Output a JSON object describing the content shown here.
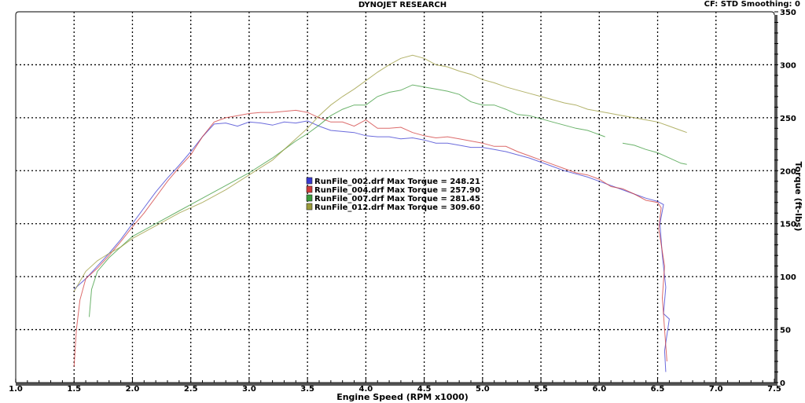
{
  "header": {
    "title": "DYNOJET RESEARCH",
    "settings": "CF: STD  Smoothing: 0"
  },
  "chart_data": {
    "type": "line",
    "title": "DYNOJET RESEARCH",
    "subtitle": "CF: STD  Smoothing: 0",
    "xlabel": "Engine Speed (RPM x1000)",
    "ylabel": "Torque (ft-lbs)",
    "xlim": [
      1.0,
      7.5
    ],
    "ylim": [
      0,
      350
    ],
    "x_ticks": [
      "1.0",
      "1.5",
      "2.0",
      "2.5",
      "3.0",
      "3.5",
      "4.0",
      "4.5",
      "5.0",
      "5.5",
      "6.0",
      "6.5",
      "7.0",
      "7.5"
    ],
    "y_ticks": [
      "0",
      "50",
      "100",
      "150",
      "200",
      "250",
      "300",
      "350"
    ],
    "grid": true,
    "legend_position": "center",
    "series": [
      {
        "name": "RunFile_002.drf",
        "legend": "RunFile_002.drf Max Torque = 248.21",
        "max_torque": 248.21,
        "color": "#3a3ad0",
        "points": [
          [
            1.5,
            88
          ],
          [
            1.6,
            98
          ],
          [
            1.7,
            110
          ],
          [
            1.8,
            122
          ],
          [
            1.9,
            135
          ],
          [
            2.0,
            150
          ],
          [
            2.1,
            165
          ],
          [
            2.2,
            180
          ],
          [
            2.3,
            193
          ],
          [
            2.4,
            205
          ],
          [
            2.5,
            218
          ],
          [
            2.6,
            232
          ],
          [
            2.7,
            244
          ],
          [
            2.8,
            245
          ],
          [
            2.9,
            242
          ],
          [
            3.0,
            246
          ],
          [
            3.1,
            245
          ],
          [
            3.2,
            243
          ],
          [
            3.3,
            246
          ],
          [
            3.4,
            245
          ],
          [
            3.5,
            247
          ],
          [
            3.6,
            242
          ],
          [
            3.7,
            238
          ],
          [
            3.8,
            237
          ],
          [
            3.9,
            236
          ],
          [
            4.0,
            233
          ],
          [
            4.1,
            232
          ],
          [
            4.2,
            232
          ],
          [
            4.3,
            230
          ],
          [
            4.4,
            231
          ],
          [
            4.5,
            229
          ],
          [
            4.6,
            226
          ],
          [
            4.7,
            226
          ],
          [
            4.8,
            224
          ],
          [
            4.9,
            222
          ],
          [
            5.0,
            222
          ],
          [
            5.1,
            220
          ],
          [
            5.2,
            218
          ],
          [
            5.3,
            215
          ],
          [
            5.4,
            212
          ],
          [
            5.5,
            208
          ],
          [
            5.6,
            204
          ],
          [
            5.7,
            200
          ],
          [
            5.8,
            197
          ],
          [
            5.9,
            194
          ],
          [
            6.0,
            190
          ],
          [
            6.1,
            186
          ],
          [
            6.2,
            182
          ],
          [
            6.3,
            178
          ],
          [
            6.4,
            174
          ],
          [
            6.5,
            171
          ],
          [
            6.55,
            168
          ],
          [
            6.52,
            150
          ],
          [
            6.54,
            120
          ],
          [
            6.57,
            90
          ],
          [
            6.55,
            65
          ],
          [
            6.6,
            60
          ],
          [
            6.56,
            30
          ],
          [
            6.57,
            10
          ]
        ]
      },
      {
        "name": "RunFile_004.drf",
        "legend": "RunFile_004.drf Max Torque = 257.90",
        "max_torque": 257.9,
        "color": "#d03a3a",
        "points": [
          [
            1.5,
            15
          ],
          [
            1.52,
            50
          ],
          [
            1.55,
            78
          ],
          [
            1.6,
            98
          ],
          [
            1.7,
            108
          ],
          [
            1.8,
            120
          ],
          [
            1.9,
            133
          ],
          [
            2.0,
            147
          ],
          [
            2.1,
            160
          ],
          [
            2.2,
            175
          ],
          [
            2.3,
            190
          ],
          [
            2.4,
            203
          ],
          [
            2.5,
            215
          ],
          [
            2.6,
            232
          ],
          [
            2.7,
            246
          ],
          [
            2.8,
            250
          ],
          [
            2.9,
            252
          ],
          [
            3.0,
            254
          ],
          [
            3.1,
            255
          ],
          [
            3.2,
            255
          ],
          [
            3.3,
            256
          ],
          [
            3.4,
            257
          ],
          [
            3.5,
            255
          ],
          [
            3.6,
            250
          ],
          [
            3.7,
            246
          ],
          [
            3.8,
            246
          ],
          [
            3.9,
            242
          ],
          [
            4.0,
            248
          ],
          [
            4.1,
            240
          ],
          [
            4.2,
            240
          ],
          [
            4.3,
            241
          ],
          [
            4.4,
            236
          ],
          [
            4.5,
            233
          ],
          [
            4.6,
            231
          ],
          [
            4.7,
            232
          ],
          [
            4.8,
            230
          ],
          [
            4.9,
            228
          ],
          [
            5.0,
            226
          ],
          [
            5.1,
            223
          ],
          [
            5.2,
            223
          ],
          [
            5.3,
            218
          ],
          [
            5.4,
            214
          ],
          [
            5.5,
            210
          ],
          [
            5.6,
            206
          ],
          [
            5.7,
            202
          ],
          [
            5.8,
            198
          ],
          [
            5.9,
            196
          ],
          [
            6.0,
            192
          ],
          [
            6.1,
            185
          ],
          [
            6.2,
            183
          ],
          [
            6.3,
            178
          ],
          [
            6.4,
            172
          ],
          [
            6.5,
            170
          ],
          [
            6.53,
            165
          ],
          [
            6.51,
            145
          ],
          [
            6.56,
            110
          ],
          [
            6.54,
            80
          ],
          [
            6.56,
            50
          ],
          [
            6.58,
            20
          ]
        ]
      },
      {
        "name": "RunFile_007.drf",
        "legend": "RunFile_007.drf Max Torque = 281.45",
        "max_torque": 281.45,
        "color": "#3a9a3a",
        "points": [
          [
            1.63,
            62
          ],
          [
            1.65,
            88
          ],
          [
            1.7,
            105
          ],
          [
            1.8,
            118
          ],
          [
            1.9,
            128
          ],
          [
            2.0,
            138
          ],
          [
            2.2,
            150
          ],
          [
            2.4,
            162
          ],
          [
            2.6,
            174
          ],
          [
            2.8,
            186
          ],
          [
            3.0,
            198
          ],
          [
            3.2,
            212
          ],
          [
            3.3,
            220
          ],
          [
            3.4,
            228
          ],
          [
            3.5,
            235
          ],
          [
            3.6,
            243
          ],
          [
            3.7,
            252
          ],
          [
            3.8,
            258
          ],
          [
            3.9,
            262
          ],
          [
            4.0,
            262
          ],
          [
            4.1,
            270
          ],
          [
            4.2,
            274
          ],
          [
            4.3,
            276
          ],
          [
            4.4,
            281
          ],
          [
            4.5,
            279
          ],
          [
            4.6,
            277
          ],
          [
            4.7,
            275
          ],
          [
            4.8,
            272
          ],
          [
            4.9,
            265
          ],
          [
            5.0,
            262
          ],
          [
            5.1,
            262
          ],
          [
            5.2,
            258
          ],
          [
            5.3,
            253
          ],
          [
            5.4,
            252
          ],
          [
            5.5,
            249
          ],
          [
            5.6,
            246
          ],
          [
            5.7,
            243
          ],
          [
            5.8,
            240
          ],
          [
            5.9,
            238
          ],
          [
            5.95,
            236
          ],
          [
            6.05,
            232
          ]
        ]
      },
      {
        "name": "RunFile_007.drf (seg 2)",
        "legend": "",
        "color": "#3a9a3a",
        "points": [
          [
            6.2,
            226
          ],
          [
            6.3,
            224
          ],
          [
            6.4,
            220
          ],
          [
            6.5,
            217
          ],
          [
            6.6,
            212
          ],
          [
            6.7,
            207
          ],
          [
            6.75,
            206
          ]
        ]
      },
      {
        "name": "RunFile_012.drf",
        "legend": "RunFile_012.drf Max Torque = 309.60",
        "max_torque": 309.6,
        "color": "#9a9a3a",
        "points": [
          [
            1.5,
            86
          ],
          [
            1.6,
            105
          ],
          [
            1.7,
            115
          ],
          [
            1.8,
            122
          ],
          [
            1.9,
            128
          ],
          [
            2.0,
            136
          ],
          [
            2.2,
            148
          ],
          [
            2.4,
            160
          ],
          [
            2.6,
            170
          ],
          [
            2.8,
            182
          ],
          [
            3.0,
            196
          ],
          [
            3.2,
            210
          ],
          [
            3.3,
            220
          ],
          [
            3.4,
            230
          ],
          [
            3.5,
            240
          ],
          [
            3.6,
            252
          ],
          [
            3.7,
            262
          ],
          [
            3.8,
            270
          ],
          [
            3.9,
            277
          ],
          [
            4.0,
            285
          ],
          [
            4.1,
            293
          ],
          [
            4.2,
            300
          ],
          [
            4.3,
            306
          ],
          [
            4.4,
            309
          ],
          [
            4.5,
            306
          ],
          [
            4.6,
            300
          ],
          [
            4.7,
            298
          ],
          [
            4.8,
            294
          ],
          [
            4.9,
            291
          ],
          [
            5.0,
            286
          ],
          [
            5.1,
            283
          ],
          [
            5.2,
            279
          ],
          [
            5.3,
            276
          ],
          [
            5.4,
            273
          ],
          [
            5.5,
            270
          ],
          [
            5.6,
            267
          ],
          [
            5.7,
            264
          ],
          [
            5.8,
            262
          ],
          [
            5.9,
            258
          ],
          [
            6.0,
            256
          ],
          [
            6.1,
            254
          ],
          [
            6.2,
            252
          ],
          [
            6.3,
            250
          ],
          [
            6.4,
            248
          ],
          [
            6.5,
            246
          ],
          [
            6.6,
            242
          ],
          [
            6.7,
            238
          ],
          [
            6.75,
            236
          ]
        ]
      }
    ]
  },
  "legend": {
    "items": [
      {
        "swatch_color": "#3a3ad0",
        "text": "RunFile_002.drf Max Torque = 248.21"
      },
      {
        "swatch_color": "#d03a3a",
        "text": "RunFile_004.drf Max Torque = 257.90"
      },
      {
        "swatch_color": "#3a9a3a",
        "text": "RunFile_007.drf Max Torque = 281.45"
      },
      {
        "swatch_color": "#9a9a3a",
        "text": "RunFile_012.drf Max Torque = 309.60"
      }
    ]
  },
  "axes": {
    "x_title": "Engine Speed (RPM x1000)",
    "y_title": "Torque (ft-lbs)"
  }
}
